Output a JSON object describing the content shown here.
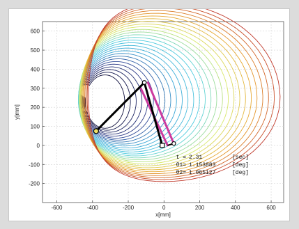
{
  "chart_data": {
    "type": "line",
    "xlabel": "x[mm]",
    "ylabel": "y[mm]",
    "xlim": [
      -680,
      670
    ],
    "ylim": [
      -300,
      650
    ],
    "x_ticks": [
      -600,
      -400,
      -200,
      0,
      200,
      400,
      600
    ],
    "y_ticks": [
      -200,
      -100,
      0,
      100,
      200,
      300,
      400,
      500,
      600
    ],
    "grid": true,
    "trajectories": {
      "count": 28,
      "color_progression": [
        "#0b0b3a",
        "#2f3f8f",
        "#3aa6d6",
        "#52d0e0",
        "#d8e86a",
        "#e8a02a",
        "#c0392b"
      ],
      "description_points": "arm link traces sweeping counter-clockwise"
    },
    "arm": {
      "base": [
        -380,
        75
      ],
      "joint": [
        -110,
        330
      ],
      "tip": [
        -10,
        0
      ],
      "arm_color": "#000000",
      "pink_links": [
        {
          "from": [
            -130,
            300
          ],
          "to": [
            20,
            0
          ]
        },
        {
          "from": [
            -90,
            330
          ],
          "to": [
            55,
            10
          ]
        }
      ],
      "pink_color": "#cc3a9e"
    },
    "readout": {
      "t_label": "t =",
      "t_value": "2.31",
      "t_unit": "[sec]",
      "th1_label": "θ1=",
      "th1_value": "1.153883",
      "th1_unit": "[deg]",
      "th2_label": "θ2=",
      "th2_value": "1.065127",
      "th2_unit": "[deg]"
    }
  }
}
